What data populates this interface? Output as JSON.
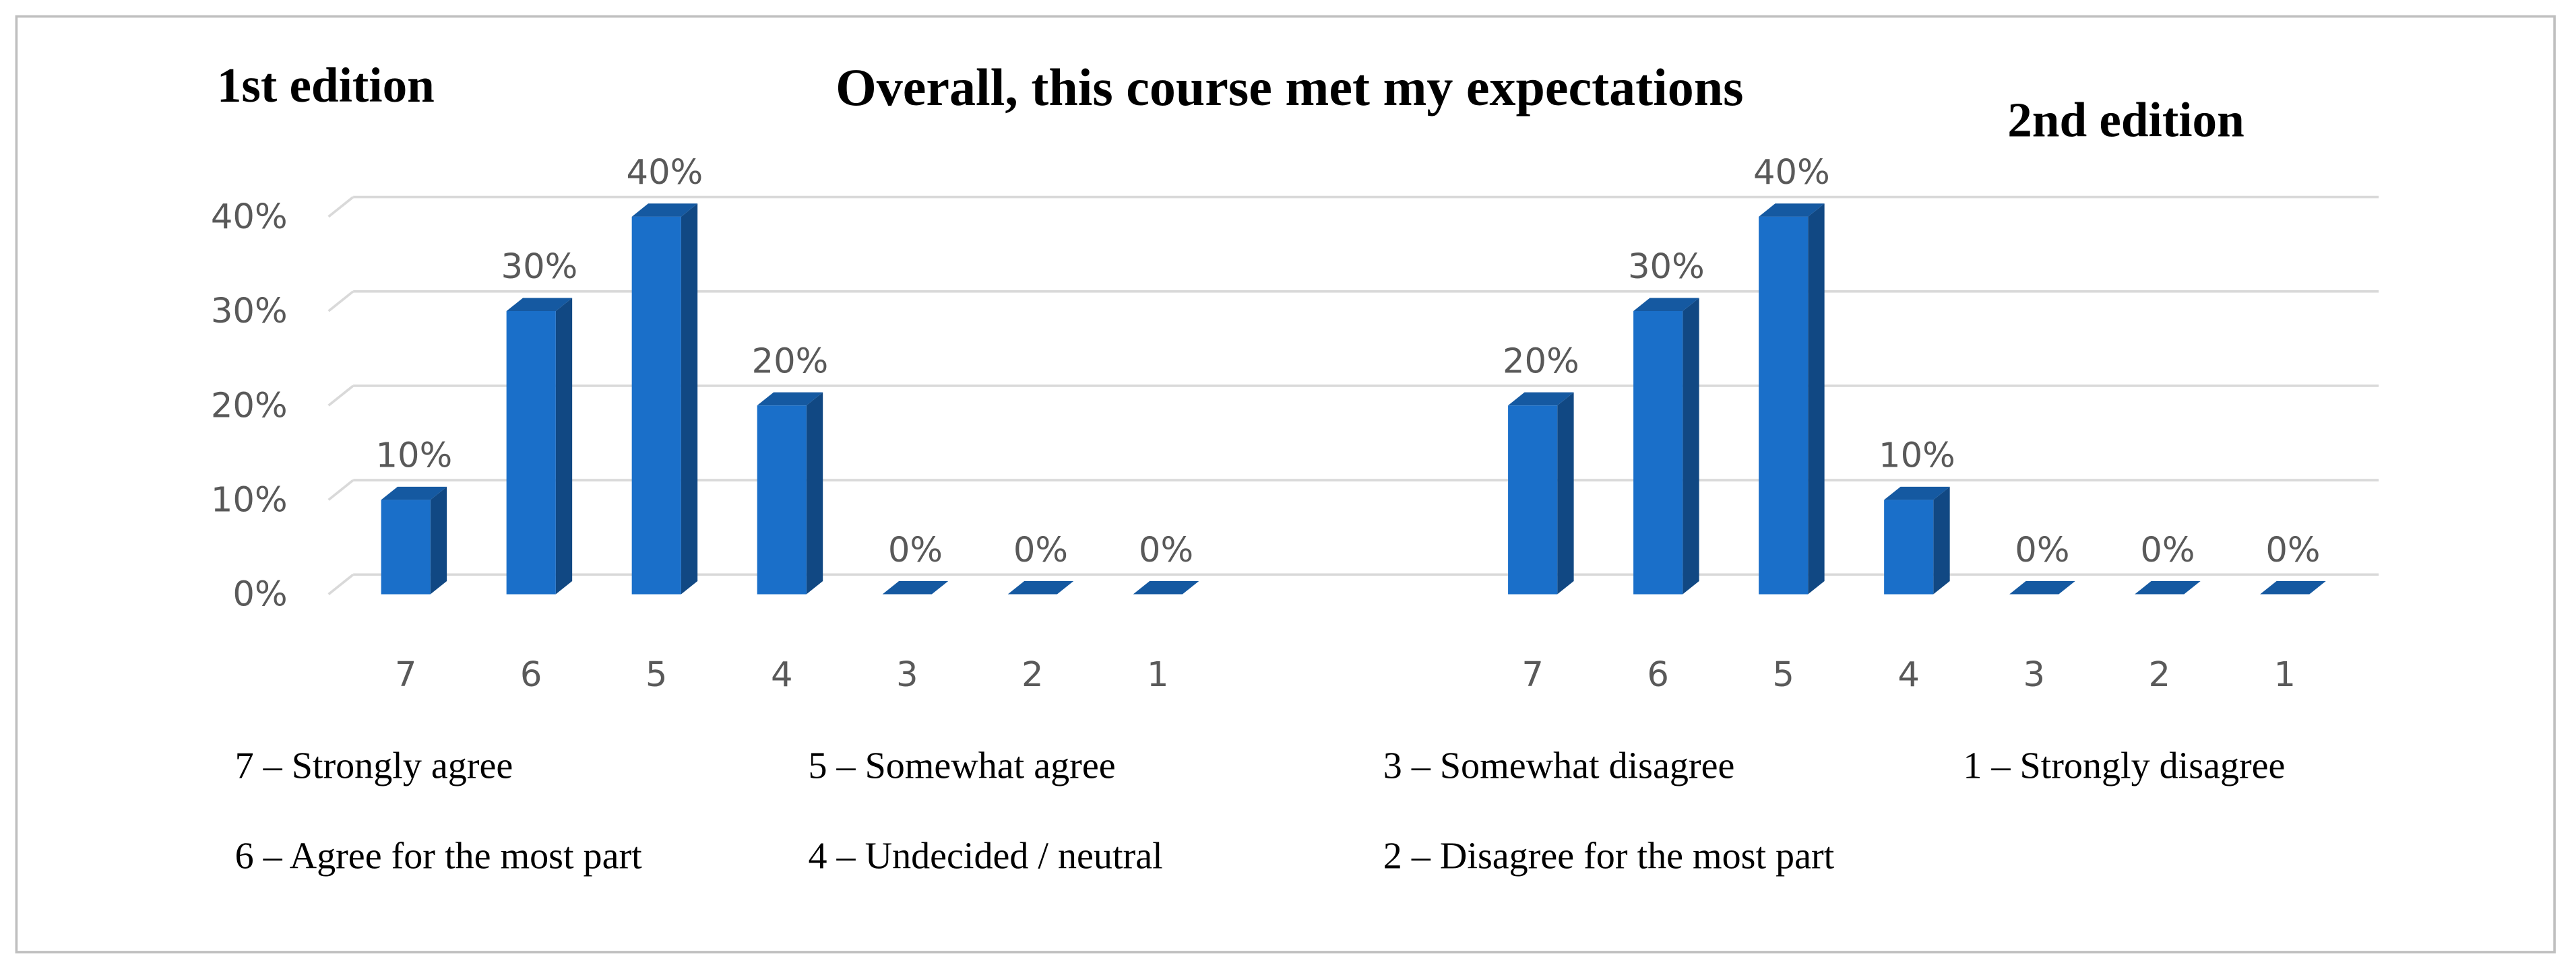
{
  "chart_data": {
    "type": "bar",
    "title": "Overall, this course met my expectations",
    "color": "#1a6fc9",
    "grid": true,
    "ylim": [
      0,
      40
    ],
    "yticks": [
      {
        "value": 0,
        "label": "0%"
      },
      {
        "value": 10,
        "label": "10%"
      },
      {
        "value": 20,
        "label": "20%"
      },
      {
        "value": 30,
        "label": "30%"
      },
      {
        "value": 40,
        "label": "40%"
      }
    ],
    "series": [
      {
        "name": "1st edition",
        "categories": [
          "7",
          "6",
          "5",
          "4",
          "3",
          "2",
          "1"
        ],
        "values": [
          10,
          30,
          40,
          20,
          0,
          0,
          0
        ],
        "value_labels": [
          "10%",
          "30%",
          "40%",
          "20%",
          "0%",
          "0%",
          "0%"
        ]
      },
      {
        "name": "2nd edition",
        "categories": [
          "7",
          "6",
          "5",
          "4",
          "3",
          "2",
          "1"
        ],
        "values": [
          20,
          30,
          40,
          10,
          0,
          0,
          0
        ],
        "value_labels": [
          "20%",
          "30%",
          "40%",
          "10%",
          "0%",
          "0%",
          "0%"
        ]
      }
    ],
    "annotations": [
      "7 – Strongly agree",
      "5 – Somewhat agree",
      "3 – Somewhat disagree",
      "1 – Strongly disagree",
      "6 – Agree for the most part",
      "4 – Undecided / neutral",
      "2 – Disagree for the most part"
    ]
  }
}
